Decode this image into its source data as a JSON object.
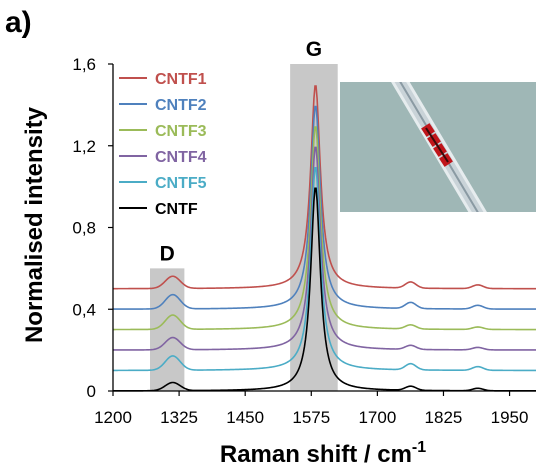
{
  "figure": {
    "panel_label": "a)"
  },
  "chart_data": {
    "type": "line",
    "xlabel": "Raman shift / cm",
    "xlabel_superscript": "-1",
    "ylabel": "Normalised intensity",
    "xlim": [
      1200,
      2000
    ],
    "ylim": [
      0,
      1.6
    ],
    "x_ticks": [
      "1200",
      "1325",
      "1450",
      "1575",
      "1700",
      "1825",
      "1950"
    ],
    "y_ticks": [
      "0",
      "0,4",
      "0,8",
      "1,2",
      "1,6"
    ],
    "grid": false,
    "legend_position": "top-left",
    "bands": [
      {
        "label": "D",
        "x_range": [
          1270,
          1335
        ],
        "y_top": 0.6
      },
      {
        "label": "G",
        "x_range": [
          1535,
          1625
        ],
        "y_top": 1.6
      }
    ],
    "series": [
      {
        "name": "CNTF1",
        "color": "#c0504d",
        "baseline": 0.5,
        "d_height": 0.06,
        "g_peak": 1.5,
        "bump_height": 0.03
      },
      {
        "name": "CNTF2",
        "color": "#4f81bd",
        "baseline": 0.4,
        "d_height": 0.07,
        "g_peak": 1.4,
        "bump_height": 0.03
      },
      {
        "name": "CNTF3",
        "color": "#9bbb59",
        "baseline": 0.3,
        "d_height": 0.07,
        "g_peak": 1.3,
        "bump_height": 0.02
      },
      {
        "name": "CNTF4",
        "color": "#8064a2",
        "baseline": 0.2,
        "d_height": 0.06,
        "g_peak": 1.2,
        "bump_height": 0.02
      },
      {
        "name": "CNTF5",
        "color": "#4bacc6",
        "baseline": 0.1,
        "d_height": 0.07,
        "g_peak": 1.1,
        "bump_height": 0.03
      },
      {
        "name": "CNTF",
        "color": "#000000",
        "baseline": 0.0,
        "d_height": 0.04,
        "g_peak": 1.0,
        "bump_height": 0.02
      }
    ],
    "peak_positions": {
      "D": 1313,
      "G": 1583,
      "bump": 1763
    },
    "inset": {
      "description_color_bg": "#9fb7b6",
      "fiber_color": "#c9d3d8",
      "marker_color": "#c0151b"
    }
  }
}
